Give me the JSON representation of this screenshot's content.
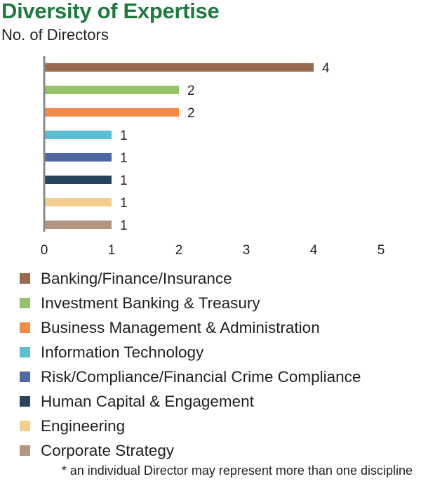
{
  "header": {
    "title": "Diversity of Expertise",
    "subtitle": "No. of Directors"
  },
  "chart_data": {
    "type": "bar",
    "orientation": "horizontal",
    "categories": [
      "Banking/Finance/Insurance",
      "Investment Banking & Treasury",
      "Business Management & Administration",
      "Information Technology",
      "Risk/Compliance/Financial Crime Compliance",
      "Human Capital & Engagement",
      "Engineering",
      "Corporate Strategy"
    ],
    "values": [
      4,
      2,
      2,
      1,
      1,
      1,
      1,
      1
    ],
    "colors": [
      "#9a6a4e",
      "#96c06a",
      "#f58a45",
      "#5bbfd3",
      "#4f67a2",
      "#27445b",
      "#f2cf8f",
      "#b39580"
    ],
    "xlim": [
      0,
      5
    ],
    "xticks": [
      "0",
      "1",
      "2",
      "3",
      "4",
      "5"
    ],
    "data_labels": true,
    "legend": "bottom",
    "grid": false
  },
  "footnote": "* an individual Director may represent more than one discipline"
}
